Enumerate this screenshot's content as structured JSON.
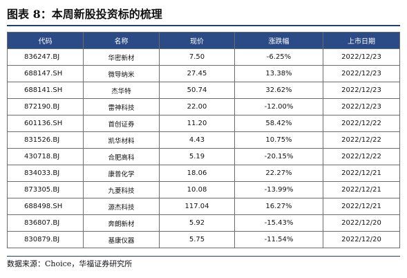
{
  "figure": {
    "title": "图表 8：本周新股投资标的梳理",
    "source": "数据来源：Choice，华福证券研究所"
  },
  "table": {
    "headers": [
      "代码",
      "名称",
      "现价",
      "涨跌幅",
      "上市日期"
    ],
    "rows": [
      [
        "836247.BJ",
        "华密新材",
        "7.50",
        "-6.25%",
        "2022/12/23"
      ],
      [
        "688147.SH",
        "微导纳米",
        "27.45",
        "13.38%",
        "2022/12/23"
      ],
      [
        "688141.SH",
        "杰华特",
        "50.74",
        "32.62%",
        "2022/12/23"
      ],
      [
        "872190.BJ",
        "雷神科技",
        "22.00",
        "-12.00%",
        "2022/12/23"
      ],
      [
        "601136.SH",
        "首创证券",
        "11.20",
        "58.42%",
        "2022/12/22"
      ],
      [
        "831526.BJ",
        "凯华材料",
        "4.43",
        "10.75%",
        "2022/12/22"
      ],
      [
        "430718.BJ",
        "合肥高科",
        "5.19",
        "-20.15%",
        "2022/12/22"
      ],
      [
        "834033.BJ",
        "康普化学",
        "18.06",
        "22.27%",
        "2022/12/21"
      ],
      [
        "873305.BJ",
        "九菱科技",
        "10.08",
        "-13.99%",
        "2022/12/21"
      ],
      [
        "688498.SH",
        "源杰科技",
        "117.04",
        "16.27%",
        "2022/12/21"
      ],
      [
        "836807.BJ",
        "奔朗新材",
        "5.92",
        "-15.43%",
        "2022/12/20"
      ],
      [
        "830879.BJ",
        "基康仪器",
        "5.75",
        "-11.54%",
        "2022/12/20"
      ]
    ]
  },
  "colors": {
    "header_bg": "#2a4b86",
    "header_text": "#ffffff",
    "rule": "#1e3f73",
    "border": "#6b6b6b"
  }
}
